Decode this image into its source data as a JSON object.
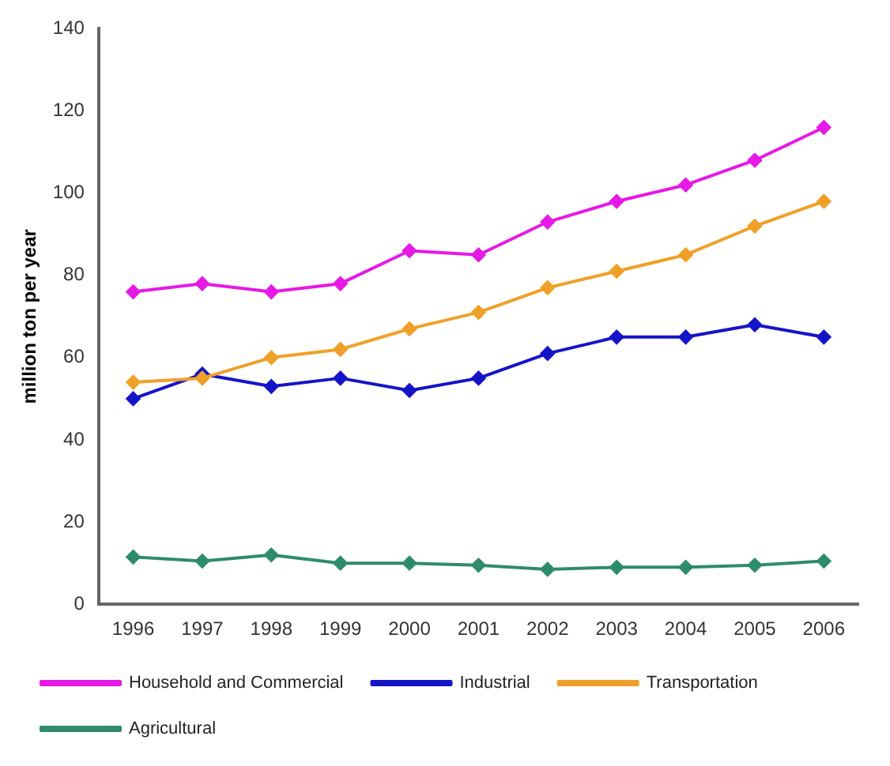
{
  "chart_data": {
    "type": "line",
    "ylabel": "million ton per year",
    "categories": [
      "1996",
      "1997",
      "1998",
      "1999",
      "2000",
      "2001",
      "2002",
      "2003",
      "2004",
      "2005",
      "2006"
    ],
    "series": [
      {
        "name": "Household and Commercial",
        "color": "#e619e6",
        "values": [
          76,
          78,
          76,
          78,
          86,
          85,
          93,
          98,
          102,
          108,
          116
        ]
      },
      {
        "name": "Industrial",
        "color": "#1414c8",
        "values": [
          50,
          56,
          53,
          55,
          52,
          55,
          61,
          65,
          65,
          68,
          65
        ]
      },
      {
        "name": "Transportation",
        "color": "#f0a028",
        "values": [
          54,
          55,
          60,
          62,
          67,
          71,
          77,
          81,
          85,
          92,
          98
        ]
      },
      {
        "name": "Agricultural",
        "color": "#2e8b6e",
        "values": [
          11.5,
          10.5,
          12,
          10,
          10,
          9.5,
          8.5,
          9,
          9,
          9.5,
          10.5
        ]
      }
    ],
    "ylim": [
      0,
      140
    ],
    "yticks": [
      0,
      20,
      40,
      60,
      80,
      100,
      120,
      140
    ],
    "grid": false,
    "legend": "bottom",
    "marker": "diamond",
    "line_style": "solid"
  }
}
